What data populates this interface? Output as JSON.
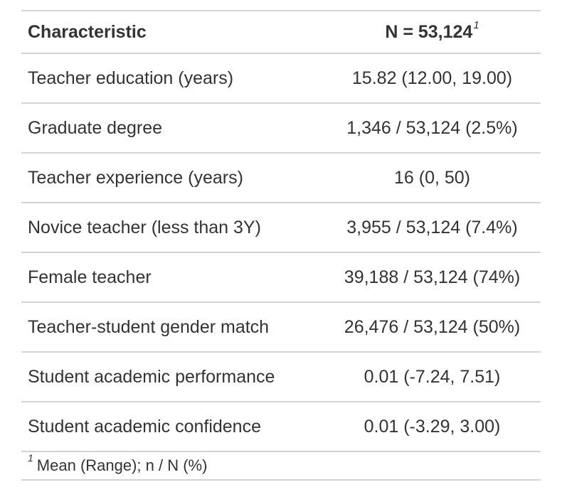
{
  "table": {
    "header": {
      "characteristic": "Characteristic",
      "n_label": "N = 53,124",
      "n_footnote_marker": "1"
    },
    "rows": [
      {
        "label": "Teacher education (years)",
        "value": "15.82 (12.00, 19.00)"
      },
      {
        "label": "Graduate degree",
        "value": "1,346 / 53,124 (2.5%)"
      },
      {
        "label": "Teacher experience (years)",
        "value": "16 (0, 50)"
      },
      {
        "label": "Novice teacher (less than 3Y)",
        "value": "3,955 / 53,124 (7.4%)"
      },
      {
        "label": "Female teacher",
        "value": "39,188 / 53,124 (74%)"
      },
      {
        "label": "Teacher-student gender match",
        "value": "26,476 / 53,124 (50%)"
      },
      {
        "label": "Student academic performance",
        "value": "0.01 (-7.24, 7.51)"
      },
      {
        "label": "Student academic confidence",
        "value": "0.01 (-3.29, 3.00)"
      }
    ],
    "footnote": {
      "marker": "1",
      "text": "Mean (Range); n / N (%)"
    }
  }
}
